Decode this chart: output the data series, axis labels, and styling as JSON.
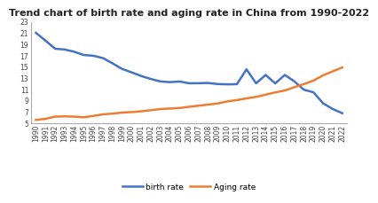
{
  "years": [
    1990,
    1991,
    1992,
    1993,
    1994,
    1995,
    1996,
    1997,
    1998,
    1999,
    2000,
    2001,
    2002,
    2003,
    2004,
    2005,
    2006,
    2007,
    2008,
    2009,
    2010,
    2011,
    2012,
    2013,
    2014,
    2015,
    2016,
    2017,
    2018,
    2019,
    2020,
    2021,
    2022
  ],
  "birth_rate": [
    21.06,
    19.68,
    18.24,
    18.09,
    17.7,
    17.12,
    16.98,
    16.57,
    15.64,
    14.64,
    14.03,
    13.38,
    12.86,
    12.41,
    12.29,
    12.4,
    12.09,
    12.1,
    12.14,
    11.95,
    11.9,
    11.93,
    14.57,
    12.08,
    13.57,
    12.07,
    13.57,
    12.43,
    10.94,
    10.48,
    8.52,
    7.52,
    6.77
  ],
  "aging_rate": [
    5.57,
    5.76,
    6.16,
    6.2,
    6.16,
    6.04,
    6.28,
    6.56,
    6.69,
    6.88,
    6.96,
    7.1,
    7.3,
    7.5,
    7.6,
    7.69,
    7.9,
    8.1,
    8.3,
    8.5,
    8.87,
    9.1,
    9.4,
    9.67,
    10.06,
    10.47,
    10.8,
    11.4,
    11.94,
    12.57,
    13.5,
    14.2,
    14.9
  ],
  "title": "Trend chart of birth rate and aging rate in China from 1990-2022",
  "birth_color": "#4472C4",
  "aging_color": "#ED7D31",
  "birth_label": "birth rate",
  "aging_label": "Aging rate",
  "ylim": [
    5,
    23
  ],
  "yticks": [
    5,
    7,
    9,
    11,
    13,
    15,
    17,
    19,
    21,
    23
  ],
  "bg_color": "#FFFFFF",
  "line_width": 1.8,
  "title_fontsize": 8,
  "tick_fontsize": 5.5,
  "legend_fontsize": 6.5
}
